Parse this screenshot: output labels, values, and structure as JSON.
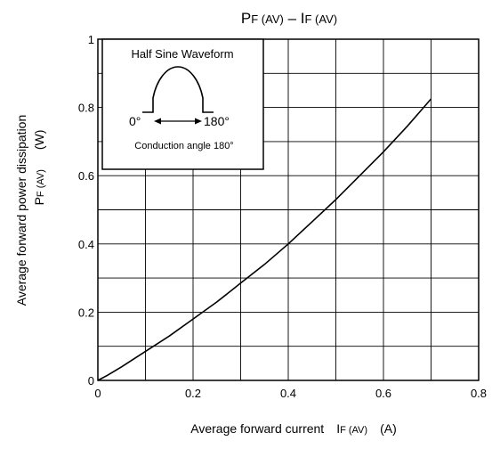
{
  "chart_data": {
    "type": "line",
    "title": {
      "main1": "P",
      "sub1": "F (AV)",
      "dash": " – ",
      "main2": "I",
      "sub2": "F (AV)"
    },
    "xlabel": {
      "text": "Average forward current",
      "symbol": "I",
      "sub": "F (AV)",
      "unit": "(A)"
    },
    "ylabel": {
      "line1": "Average forward power dissipation",
      "symbol": "P",
      "sub": "F (AV)",
      "unit": "(W)"
    },
    "xlim": [
      0,
      0.8
    ],
    "ylim": [
      0,
      1
    ],
    "x_ticks": [
      0,
      0.2,
      0.4,
      0.6,
      0.8
    ],
    "x_tick_labels": [
      "0",
      "0.2",
      "0.4",
      "0.6",
      "0.8"
    ],
    "y_ticks": [
      0,
      0.2,
      0.4,
      0.6,
      0.8,
      1
    ],
    "y_tick_labels": [
      "0",
      "0.2",
      "0.4",
      "0.6",
      "0.8",
      "1"
    ],
    "grid": true,
    "grid_x_step": 0.1,
    "grid_y_step": 0.1,
    "series": [
      {
        "x": [
          0,
          0.02,
          0.05,
          0.1,
          0.15,
          0.2,
          0.25,
          0.3,
          0.35,
          0.4,
          0.45,
          0.5,
          0.55,
          0.6,
          0.65,
          0.7
        ],
        "y": [
          0,
          0.015,
          0.04,
          0.085,
          0.13,
          0.18,
          0.23,
          0.285,
          0.34,
          0.4,
          0.465,
          0.53,
          0.6,
          0.67,
          0.745,
          0.825
        ]
      }
    ],
    "inset": {
      "title": "Half Sine Waveform",
      "left_label": "0°",
      "right_label": "180°",
      "caption": "Conduction angle 180°"
    }
  }
}
